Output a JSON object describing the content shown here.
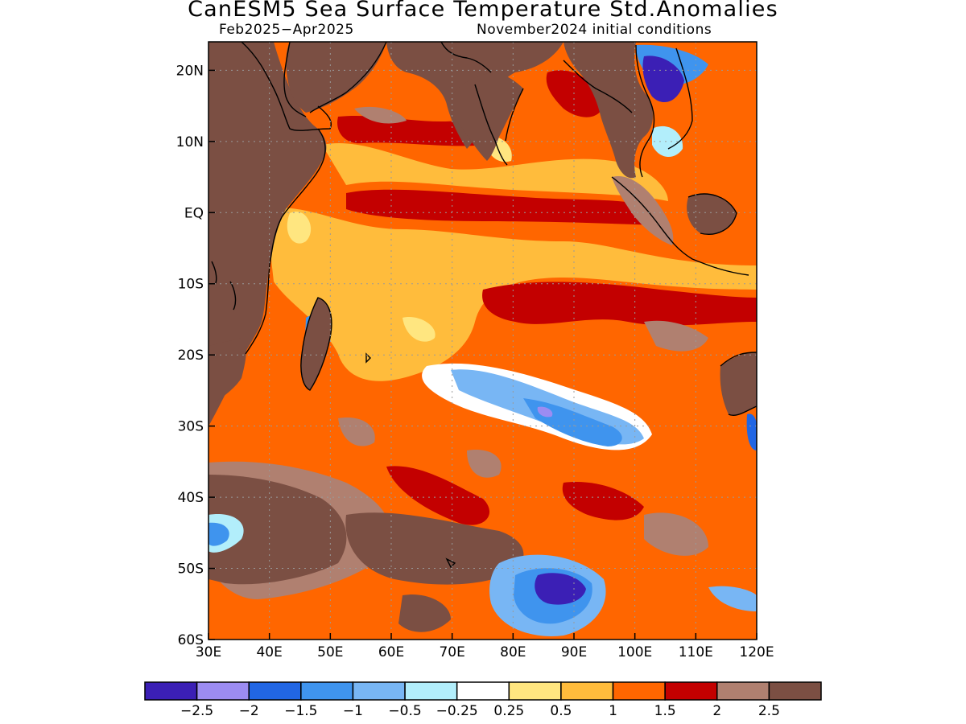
{
  "title": "CanESM5 Sea Surface Temperature Std.Anomalies",
  "subtitle_left": "Feb2025−Apr2025",
  "subtitle_right": "November2024 initial conditions",
  "map": {
    "lon_range": [
      30,
      120
    ],
    "lat_range": [
      -60,
      24
    ],
    "lon_ticks": [
      30,
      40,
      50,
      60,
      70,
      80,
      90,
      100,
      110,
      120
    ],
    "lon_tick_labels": [
      "30E",
      "40E",
      "50E",
      "60E",
      "70E",
      "80E",
      "90E",
      "100E",
      "110E",
      "120E"
    ],
    "lat_ticks": [
      20,
      10,
      0,
      -10,
      -20,
      -30,
      -40,
      -50,
      -60
    ],
    "lat_tick_labels": [
      "20N",
      "10N",
      "EQ",
      "10S",
      "20S",
      "30S",
      "40S",
      "50S",
      "60S"
    ],
    "grid": true,
    "land_color": "#ffffff"
  },
  "colorbar": {
    "colors": [
      "#3b1fb5",
      "#9c8cf2",
      "#2166e4",
      "#3f94ee",
      "#78b6f4",
      "#b2eefb",
      "#ffffff",
      "#ffe680",
      "#ffbc3c",
      "#ff6600",
      "#c30000",
      "#b08070",
      "#7b4f43"
    ],
    "labels": [
      "−2.5",
      "−2",
      "−1.5",
      "−1",
      "−0.5",
      "−0.25",
      "0.25",
      "0.5",
      "1",
      "1.5",
      "2",
      "2.5"
    ]
  }
}
